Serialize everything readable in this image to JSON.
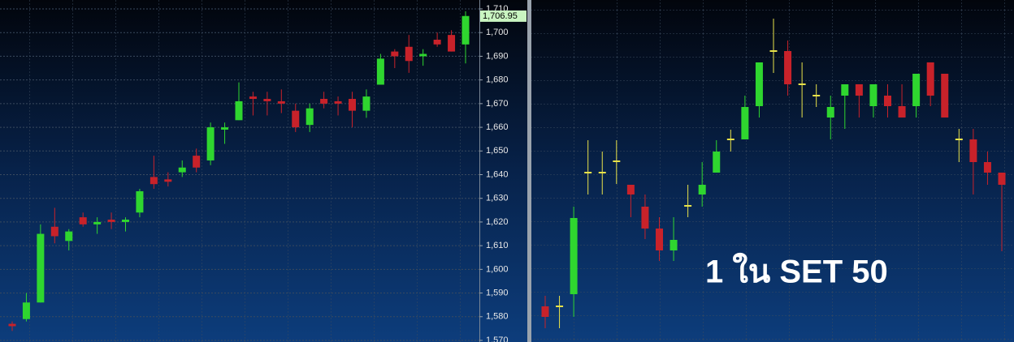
{
  "chart_data": [
    {
      "type": "candlestick",
      "open": [
        1577,
        1579,
        1586,
        1618,
        1612,
        1622,
        1619,
        1621,
        1620,
        1624,
        1639,
        1638,
        1641,
        1648,
        1646,
        1659,
        1663,
        1673,
        1672,
        1671,
        1667,
        1661,
        1672,
        1671,
        1672,
        1667,
        1678,
        1692,
        1694,
        1690,
        1697,
        1699,
        1695
      ],
      "high": [
        1578,
        1590,
        1619,
        1626,
        1617,
        1624,
        1622,
        1624,
        1622,
        1634,
        1648,
        1641,
        1646,
        1651,
        1662,
        1662,
        1679,
        1675,
        1675,
        1676,
        1670,
        1670,
        1675,
        1673,
        1675,
        1676,
        1691,
        1693,
        1699,
        1693,
        1700,
        1701,
        1709
      ],
      "low": [
        1574,
        1578,
        1586,
        1611,
        1608,
        1618,
        1615,
        1617,
        1616,
        1622,
        1634,
        1635,
        1639,
        1641,
        1644,
        1653,
        1663,
        1665,
        1665,
        1666,
        1658,
        1658,
        1668,
        1665,
        1660,
        1664,
        1678,
        1685,
        1683,
        1686,
        1694,
        1692,
        1687
      ],
      "close": [
        1576,
        1586,
        1615,
        1614,
        1616,
        1619,
        1620,
        1620,
        1621,
        1633,
        1636,
        1637,
        1643,
        1643,
        1660,
        1660,
        1671,
        1672,
        1671,
        1670,
        1660,
        1668,
        1670,
        1670,
        1667,
        1673,
        1689,
        1690,
        1688,
        1691,
        1695,
        1692,
        1707
      ],
      "up_color": "#2fd62f",
      "down_color": "#c8222a",
      "doji_color": "#e8e24a",
      "ylim": [
        1570,
        1710
      ],
      "yticks": [
        {
          "value": 1570,
          "label": "1,570"
        },
        {
          "value": 1580,
          "label": "1,580"
        },
        {
          "value": 1590,
          "label": "1,590"
        },
        {
          "value": 1600,
          "label": "1,600"
        },
        {
          "value": 1610,
          "label": "1,610"
        },
        {
          "value": 1620,
          "label": "1,620"
        },
        {
          "value": 1630,
          "label": "1,630"
        },
        {
          "value": 1640,
          "label": "1,640"
        },
        {
          "value": 1650,
          "label": "1,650"
        },
        {
          "value": 1660,
          "label": "1,660"
        },
        {
          "value": 1670,
          "label": "1,670"
        },
        {
          "value": 1680,
          "label": "1,680"
        },
        {
          "value": 1690,
          "label": "1,690"
        },
        {
          "value": 1700,
          "label": "1,700"
        },
        {
          "value": 1710,
          "label": "1,710"
        }
      ],
      "last_value": {
        "value": 1706.95,
        "label": "1,706.95"
      },
      "grid": true
    },
    {
      "type": "candlestick",
      "annotation": "1 ใน SET 50",
      "open": [
        44,
        44,
        59,
        209,
        209,
        223,
        194,
        167,
        140,
        113,
        168,
        182,
        209,
        250,
        250,
        291,
        359,
        359,
        318,
        304,
        277,
        304,
        318,
        291,
        304,
        291,
        291,
        345,
        331,
        250,
        250,
        222,
        209
      ],
      "high": [
        57,
        57,
        167,
        249,
        235,
        249,
        194,
        182,
        154,
        154,
        194,
        222,
        249,
        262,
        304,
        345,
        399,
        372,
        345,
        318,
        304,
        318,
        318,
        318,
        318,
        318,
        331,
        345,
        331,
        263,
        263,
        235,
        209
      ],
      "low": [
        17,
        17,
        31,
        182,
        182,
        195,
        154,
        127,
        100,
        100,
        154,
        167,
        209,
        235,
        250,
        277,
        332,
        304,
        277,
        290,
        250,
        263,
        277,
        277,
        277,
        277,
        277,
        291,
        277,
        222,
        182,
        194,
        112
      ],
      "close": [
        31,
        44,
        153,
        209,
        209,
        223,
        182,
        140,
        113,
        126,
        168,
        194,
        235,
        250,
        290,
        345,
        359,
        318,
        318,
        304,
        290,
        318,
        304,
        318,
        291,
        277,
        331,
        304,
        277,
        250,
        222,
        209,
        194
      ],
      "up_color": "#2fd62f",
      "down_color": "#c8222a",
      "doji_color": "#e8e24a",
      "ylim": [
        0,
        422
      ]
    }
  ]
}
